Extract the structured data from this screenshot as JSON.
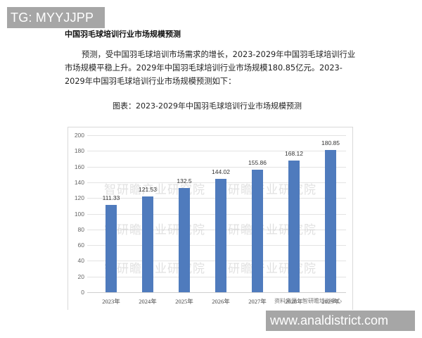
{
  "overlay": {
    "tg_badge": "TG: MYYJJPP",
    "url_badge": "www.analdistrict.com"
  },
  "document": {
    "heading": "中国羽毛球培训行业市场规模预测",
    "paragraph": "预测，受中国羽毛球培训市场需求的增长，2023-2029年中国羽毛球培训行业市场规模平稳上升。2029年中国羽毛球培训行业市场规模180.85亿元。2023-2029年中国羽毛球培训行业市场规模预测如下：",
    "figure_caption": "图表：2023-2029年中国羽毛球培训行业市场规模预测"
  },
  "chart": {
    "watermark": "智研瞻产业研究院",
    "source_note": "资料来源：智研瞻培训中心",
    "bar_color": "#4f7bbd",
    "y_ticks": [
      "0",
      "20",
      "40",
      "60",
      "80",
      "100",
      "120",
      "140",
      "160",
      "180",
      "200"
    ]
  },
  "chart_data": {
    "type": "bar",
    "title": "图表：2023-2029年中国羽毛球培训行业市场规模预测",
    "categories": [
      "2023年",
      "2024年",
      "2025年",
      "2026年",
      "2027年",
      "2028年",
      "2029年"
    ],
    "values": [
      111.33,
      121.53,
      132.5,
      144.02,
      155.86,
      168.12,
      180.85
    ],
    "value_labels": [
      "111.33",
      "121.53",
      "132.5",
      "144.02",
      "155.86",
      "168.12",
      "180.85"
    ],
    "xlabel": "",
    "ylabel": "",
    "ylim": [
      0,
      200
    ],
    "y_ticks": [
      0,
      20,
      40,
      60,
      80,
      100,
      120,
      140,
      160,
      180,
      200
    ],
    "grid": true,
    "legend": "none",
    "unit": "亿元"
  }
}
